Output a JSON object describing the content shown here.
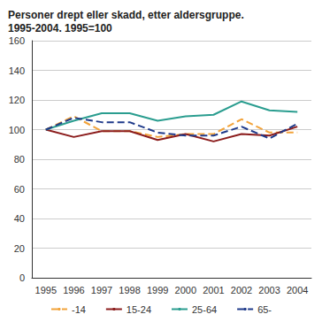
{
  "chart_data": {
    "type": "line",
    "title": "Personer drept eller skadd, etter aldersgruppe.\n1995-2004. 1995=100",
    "categories": [
      "1995",
      "1996",
      "1997",
      "1998",
      "1999",
      "2000",
      "2001",
      "2002",
      "2003",
      "2004"
    ],
    "series": [
      {
        "name": "-14",
        "color": "#f2a33a",
        "line_style": "dashed",
        "values": [
          100,
          109,
          99,
          99,
          95,
          97,
          97,
          107,
          98,
          98
        ]
      },
      {
        "name": "15-24",
        "color": "#8b1c1c",
        "line_style": "solid",
        "values": [
          100,
          95,
          99,
          99,
          93,
          97,
          92,
          97,
          96,
          102
        ]
      },
      {
        "name": "25-64",
        "color": "#2a9d8f",
        "line_style": "solid",
        "values": [
          100,
          106,
          111,
          111,
          106,
          109,
          110,
          119,
          113,
          112
        ]
      },
      {
        "name": "65-",
        "color": "#1f3a8a",
        "line_style": "dashed",
        "values": [
          100,
          108,
          105,
          105,
          98,
          96,
          96,
          102,
          94,
          104
        ]
      }
    ],
    "ylim": [
      0,
      160
    ],
    "yticks": [
      0,
      20,
      40,
      60,
      80,
      100,
      120,
      140,
      160
    ],
    "grid": true,
    "legend": "bottom"
  }
}
